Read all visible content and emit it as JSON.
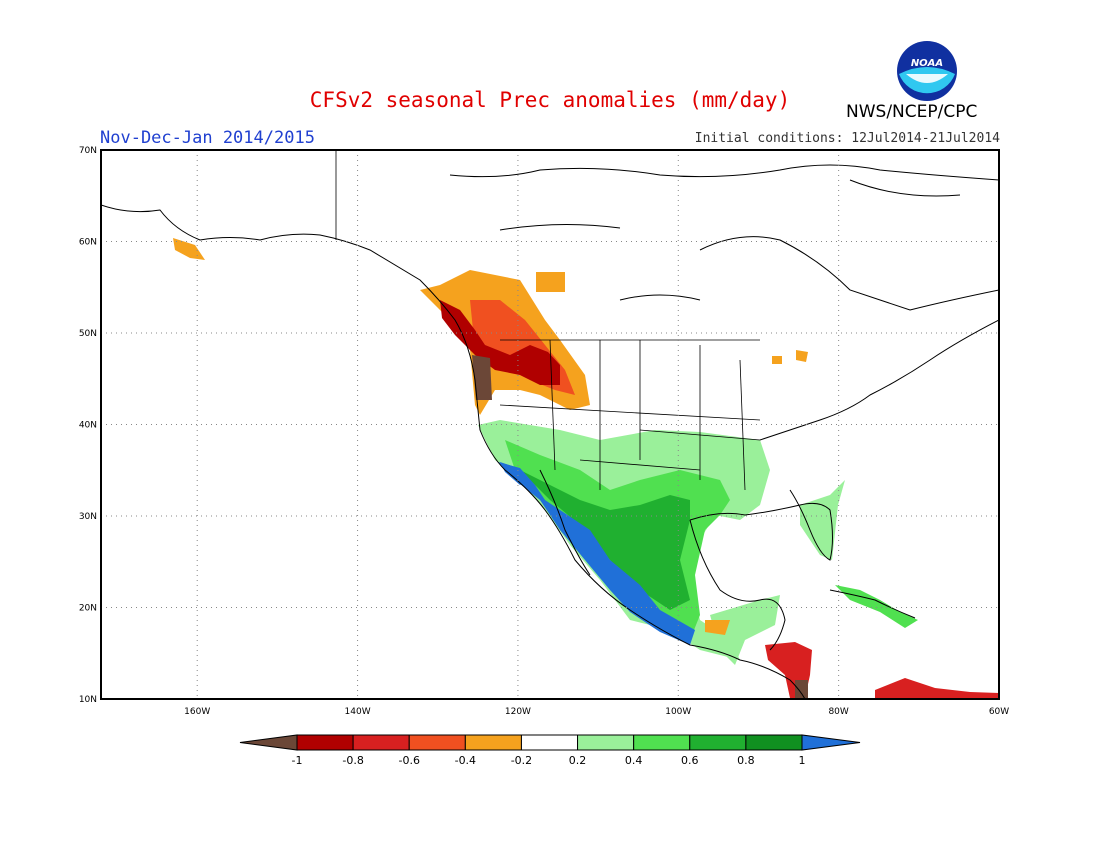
{
  "header": {
    "title": "CFSv2 seasonal Prec anomalies (mm/day)",
    "period": "Nov-Dec-Jan 2014/2015",
    "initial_conditions": "Initial conditions: 12Jul2014-21Jul2014",
    "agency": "NWS/NCEP/CPC",
    "logo_text": "NOAA"
  },
  "map": {
    "region": "North America",
    "lon_range": [
      -172,
      -60
    ],
    "lat_range": [
      10,
      70
    ],
    "lon_ticks": [
      "160W",
      "140W",
      "120W",
      "100W",
      "80W",
      "60W"
    ],
    "lat_ticks": [
      "70N",
      "60N",
      "50N",
      "40N",
      "30N",
      "20N",
      "10N"
    ],
    "grid": "dotted"
  },
  "colorbar": {
    "labels": [
      "-1",
      "-0.8",
      "-0.6",
      "-0.4",
      "-0.2",
      "0.2",
      "0.4",
      "0.6",
      "0.8",
      "1"
    ],
    "colors": [
      "#6b4737",
      "#b00000",
      "#d82020",
      "#f05020",
      "#f5a21e",
      "#ffffff",
      "#9af09a",
      "#50e050",
      "#20b030",
      "#109020",
      "#2070d8"
    ]
  },
  "anomalies": {
    "dry_pacific_northwest": "#b00000",
    "dry_oregon_coast": "#6b4737",
    "dry_northern_rockies": "#f5a21e",
    "wet_southwest_south": "#9af09a",
    "wet_mexico": "#20b030",
    "very_wet_mexico_coast": "#2070d8",
    "dry_central_america": "#d82020",
    "wet_caribbean": "#50e050"
  }
}
